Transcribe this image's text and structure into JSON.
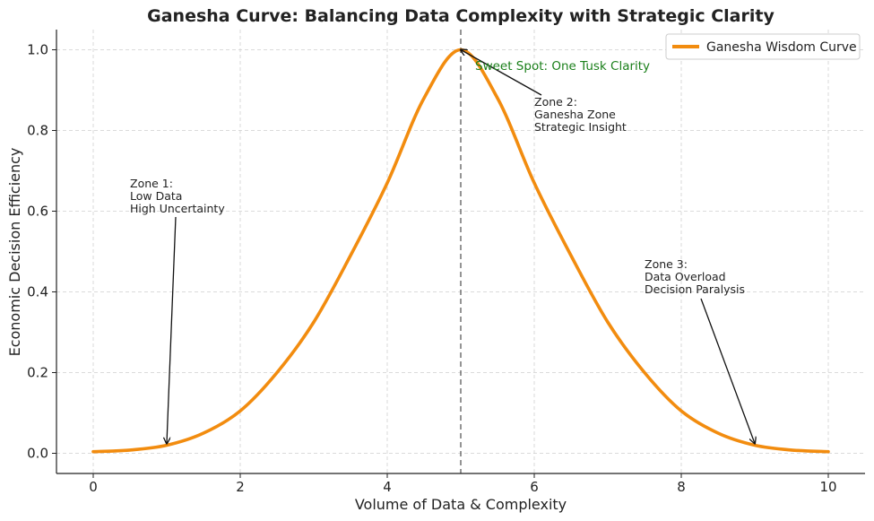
{
  "chart_data": {
    "type": "line",
    "title": "Ganesha Curve: Balancing Data Complexity with Strategic Clarity",
    "xlabel": "Volume of Data & Complexity",
    "ylabel": "Economic Decision Efficiency",
    "xlim": [
      -0.5,
      10.5
    ],
    "ylim": [
      -0.05,
      1.05
    ],
    "xticks": [
      0,
      2,
      4,
      6,
      8,
      10
    ],
    "yticks": [
      0.0,
      0.2,
      0.4,
      0.6,
      0.8,
      1.0
    ],
    "xtick_labels": [
      "0",
      "2",
      "4",
      "6",
      "8",
      "10"
    ],
    "ytick_labels": [
      "0.0",
      "0.2",
      "0.4",
      "0.6",
      "0.8",
      "1.0"
    ],
    "grid": true,
    "legend_position": "top-right",
    "series": [
      {
        "name": "Ganesha Wisdom Curve",
        "color": "#f28c0f",
        "x": [
          0,
          0.5,
          1,
          1.5,
          2,
          2.5,
          3,
          3.5,
          4,
          4.5,
          5,
          5.5,
          6,
          6.5,
          7,
          7.5,
          8,
          8.5,
          9,
          9.5,
          10
        ],
        "y": [
          0.004,
          0.008,
          0.02,
          0.05,
          0.105,
          0.2,
          0.325,
          0.49,
          0.67,
          0.88,
          1.0,
          0.88,
          0.67,
          0.49,
          0.325,
          0.2,
          0.105,
          0.05,
          0.02,
          0.008,
          0.004
        ]
      }
    ],
    "vline": {
      "x": 5,
      "color": "#666666"
    },
    "sweet_spot": {
      "label": "Sweet Spot: One Tusk Clarity",
      "color": "#1a7f1a"
    },
    "annotations": [
      {
        "lines": [
          "Zone 1:",
          "Low Data",
          "High Uncertainty"
        ],
        "point": [
          1,
          0.02
        ]
      },
      {
        "lines": [
          "Zone 2:",
          "Ganesha Zone",
          "Strategic Insight"
        ],
        "point": [
          5,
          1.0
        ]
      },
      {
        "lines": [
          "Zone 3:",
          "Data Overload",
          "Decision Paralysis"
        ],
        "point": [
          9,
          0.02
        ]
      }
    ]
  }
}
